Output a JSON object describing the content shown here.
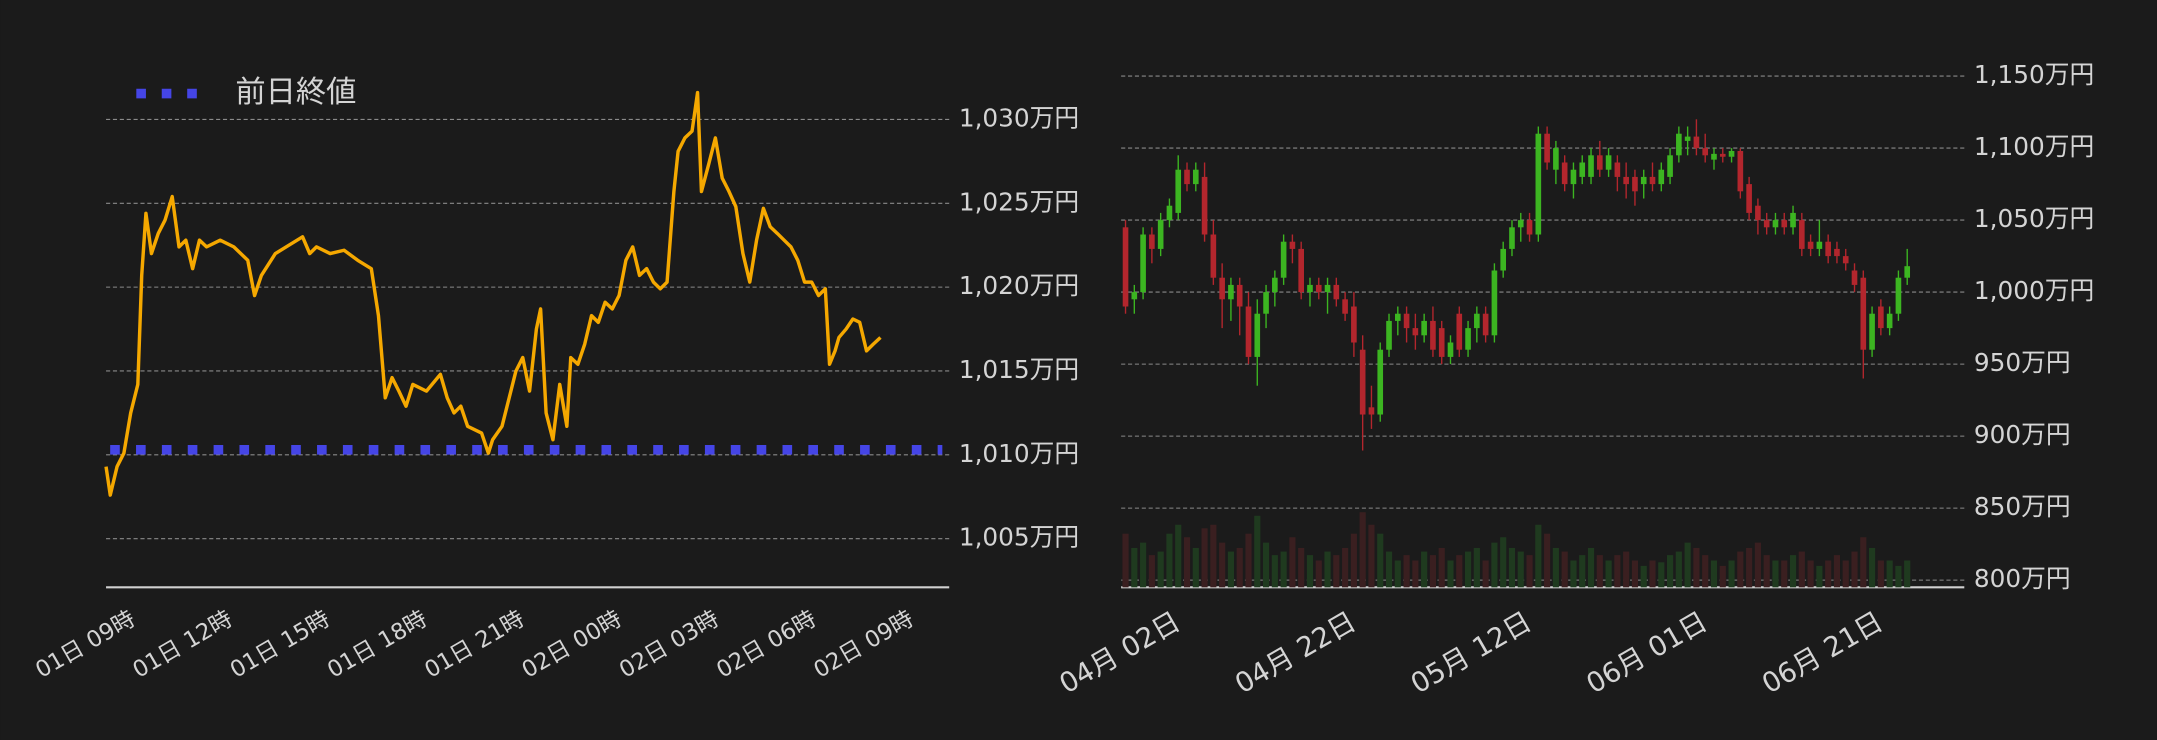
{
  "chart_data": [
    {
      "type": "line",
      "x": [
        0,
        0.13,
        0.34,
        0.55,
        0.76,
        0.98,
        1.1,
        1.23,
        1.4,
        1.61,
        1.82,
        2.04,
        2.25,
        2.46,
        2.67,
        2.88,
        3.1,
        3.52,
        3.94,
        4.37,
        4.58,
        4.79,
        5.22,
        5.64,
        6.06,
        6.28,
        6.49,
        6.91,
        7.34,
        7.76,
        8.18,
        8.4,
        8.61,
        8.82,
        9.03,
        9.25,
        9.46,
        9.88,
        10.31,
        10.52,
        10.73,
        10.94,
        11.15,
        11.58,
        11.79,
        11.92,
        12.21,
        12.64,
        12.85,
        13.06,
        13.27,
        13.4,
        13.57,
        13.78,
        13.99,
        14.21,
        14.33,
        14.55,
        14.76,
        14.97,
        15.18,
        15.39,
        15.61,
        15.82,
        16.03,
        16.24,
        16.45,
        16.67,
        16.88,
        17.09,
        17.3,
        17.51,
        17.64,
        17.85,
        18.07,
        18.24,
        18.36,
        18.58,
        18.79,
        19,
        19.21,
        19.42,
        19.64,
        19.85,
        20.06,
        20.27,
        20.48,
        20.7,
        20.91,
        21.12,
        21.33,
        21.54,
        21.76,
        21.97,
        22.18,
        22.31,
        22.48,
        22.6,
        22.82,
        23.03,
        23.24,
        23.45,
        23.66,
        23.88
      ],
      "series": [
        {
          "color": "#f5a800",
          "values": [
            1009.3,
            1007.6,
            1009.3,
            1010.1,
            1012.5,
            1014.2,
            1020.7,
            1024.4,
            1022,
            1023.2,
            1024,
            1025.4,
            1022.4,
            1022.8,
            1021.1,
            1022.8,
            1022.4,
            1022.8,
            1022.4,
            1021.6,
            1019.5,
            1020.7,
            1022,
            1022.5,
            1023,
            1022,
            1022.4,
            1022,
            1022.2,
            1021.6,
            1021.1,
            1018.3,
            1013.4,
            1014.6,
            1013.8,
            1012.9,
            1014.2,
            1013.8,
            1014.8,
            1013.4,
            1012.5,
            1012.9,
            1011.7,
            1011.3,
            1010.1,
            1010.9,
            1011.7,
            1015,
            1015.8,
            1013.8,
            1017.5,
            1018.7,
            1012.5,
            1010.9,
            1014.2,
            1011.7,
            1015.8,
            1015.4,
            1016.6,
            1018.3,
            1017.9,
            1019.1,
            1018.7,
            1019.5,
            1021.6,
            1022.4,
            1020.7,
            1021.1,
            1020.3,
            1019.9,
            1020.3,
            1025.7,
            1028.1,
            1028.9,
            1029.3,
            1031.6,
            1025.7,
            1027.3,
            1028.9,
            1026.5,
            1025.7,
            1024.8,
            1022,
            1020.3,
            1022.8,
            1024.7,
            1023.6,
            1023.2,
            1022.8,
            1022.4,
            1021.6,
            1020.3,
            1020.3,
            1019.5,
            1019.9,
            1015.4,
            1016.2,
            1017,
            1017.5,
            1018.1,
            1017.9,
            1016.2,
            1016.6,
            1017
          ]
        }
      ],
      "reference_line": {
        "name": "前日終値",
        "value": 1010.3,
        "color": "#4545e6"
      },
      "xlim": [
        0,
        26
      ],
      "xticks": [
        {
          "value": 0,
          "label": "01日 09時"
        },
        {
          "value": 3,
          "label": "01日 12時"
        },
        {
          "value": 6,
          "label": "01日 15時"
        },
        {
          "value": 9,
          "label": "01日 18時"
        },
        {
          "value": 12,
          "label": "01日 21時"
        },
        {
          "value": 15,
          "label": "02日 00時"
        },
        {
          "value": 18,
          "label": "02日 03時"
        },
        {
          "value": 21,
          "label": "02日 06時"
        },
        {
          "value": 24,
          "label": "02日 09時"
        }
      ],
      "ylim": [
        1002.1,
        1032.2
      ],
      "yticks": [
        {
          "value": 1005,
          "label": "1,005万円"
        },
        {
          "value": 1010,
          "label": "1,010万円"
        },
        {
          "value": 1015,
          "label": "1,015万円"
        },
        {
          "value": 1020,
          "label": "1,020万円"
        },
        {
          "value": 1025,
          "label": "1,025万円"
        },
        {
          "value": 1030,
          "label": "1,030万円"
        }
      ],
      "grid": true
    },
    {
      "type": "candlestick",
      "x": [
        "04月 01日",
        "04月 02日",
        "04月 03日",
        "04月 04日",
        "04月 05日",
        "04月 06日",
        "04月 07日",
        "04月 08日",
        "04月 09日",
        "04月 10日",
        "04月 11日",
        "04月 12日",
        "04月 13日",
        "04月 14日",
        "04月 15日",
        "04月 16日",
        "04月 17日",
        "04月 18日",
        "04月 19日",
        "04月 20日",
        "04月 21日",
        "04月 22日",
        "04月 23日",
        "04月 24日",
        "04月 25日",
        "04月 26日",
        "04月 27日",
        "04月 28日",
        "04月 29日",
        "04月 30日",
        "05月 01日",
        "05月 02日",
        "05月 03日",
        "05月 04日",
        "05月 05日",
        "05月 06日",
        "05月 07日",
        "05月 08日",
        "05月 09日",
        "05月 10日",
        "05月 11日",
        "05月 12日",
        "05月 13日",
        "05月 14日",
        "05月 15日",
        "05月 16日",
        "05月 17日",
        "05月 18日",
        "05月 19日",
        "05月 20日",
        "05月 21日",
        "05月 22日",
        "05月 23日",
        "05月 24日",
        "05月 25日",
        "05月 26日",
        "05月 27日",
        "05月 28日",
        "05月 29日",
        "05月 30日",
        "05月 31日",
        "06月 01日",
        "06月 02日",
        "06月 03日",
        "06月 04日",
        "06月 05日",
        "06月 06日",
        "06月 07日",
        "06月 08日",
        "06月 09日",
        "06月 10日",
        "06月 11日",
        "06月 12日",
        "06月 13日",
        "06月 14日",
        "06月 15日",
        "06月 16日",
        "06月 17日",
        "06月 18日",
        "06月 19日",
        "06月 20日",
        "06月 21日",
        "06月 22日",
        "06月 23日",
        "06月 24日",
        "06月 25日",
        "06月 26日",
        "06月 27日",
        "06月 28日",
        "06月 29日"
      ],
      "open": [
        1045,
        995,
        1000,
        1040,
        1030,
        1050,
        1055,
        1085,
        1075,
        1080,
        1040,
        1010,
        995,
        1005,
        990,
        955,
        985,
        1000,
        1010,
        1035,
        1030,
        1000,
        1005,
        1000,
        1005,
        995,
        990,
        960,
        920,
        915,
        960,
        980,
        985,
        975,
        970,
        980,
        975,
        955,
        985,
        960,
        975,
        985,
        970,
        1015,
        1030,
        1045,
        1050,
        1040,
        1110,
        1085,
        1090,
        1075,
        1080,
        1080,
        1095,
        1085,
        1090,
        1080,
        1080,
        1075,
        1080,
        1075,
        1080,
        1095,
        1105,
        1108,
        1100,
        1092,
        1096,
        1094,
        1098,
        1075,
        1060,
        1050,
        1045,
        1050,
        1045,
        1050,
        1035,
        1030,
        1035,
        1030,
        1025,
        1015,
        1010,
        960,
        990,
        975,
        985,
        1010
      ],
      "high": [
        1050,
        1005,
        1045,
        1045,
        1055,
        1065,
        1095,
        1090,
        1090,
        1090,
        1050,
        1020,
        1010,
        1010,
        1000,
        995,
        1005,
        1015,
        1040,
        1040,
        1035,
        1010,
        1010,
        1010,
        1010,
        1000,
        1000,
        970,
        935,
        965,
        985,
        990,
        990,
        985,
        985,
        990,
        980,
        970,
        990,
        980,
        990,
        990,
        1020,
        1035,
        1050,
        1055,
        1055,
        1115,
        1115,
        1105,
        1095,
        1090,
        1095,
        1100,
        1105,
        1100,
        1095,
        1090,
        1085,
        1085,
        1090,
        1090,
        1100,
        1115,
        1115,
        1120,
        1110,
        1100,
        1100,
        1100,
        1100,
        1080,
        1065,
        1055,
        1055,
        1055,
        1060,
        1055,
        1040,
        1050,
        1040,
        1035,
        1030,
        1020,
        1015,
        990,
        995,
        990,
        1015,
        1030
      ],
      "low": [
        985,
        985,
        995,
        1020,
        1025,
        1045,
        1050,
        1070,
        1070,
        1035,
        1005,
        975,
        980,
        970,
        950,
        935,
        975,
        990,
        1005,
        1020,
        995,
        990,
        995,
        985,
        990,
        980,
        955,
        890,
        905,
        910,
        955,
        970,
        965,
        960,
        965,
        955,
        950,
        950,
        955,
        955,
        965,
        965,
        965,
        1010,
        1025,
        1035,
        1035,
        1035,
        1085,
        1075,
        1070,
        1065,
        1075,
        1075,
        1080,
        1080,
        1070,
        1065,
        1060,
        1065,
        1070,
        1070,
        1075,
        1090,
        1095,
        1095,
        1090,
        1085,
        1090,
        1090,
        1065,
        1050,
        1040,
        1040,
        1040,
        1040,
        1040,
        1025,
        1025,
        1025,
        1020,
        1020,
        1015,
        1000,
        940,
        955,
        970,
        970,
        980,
        1005
      ],
      "close": [
        990,
        1000,
        1040,
        1030,
        1050,
        1060,
        1085,
        1075,
        1085,
        1040,
        1010,
        995,
        1005,
        990,
        955,
        985,
        1000,
        1010,
        1035,
        1030,
        1000,
        1005,
        1000,
        1005,
        995,
        985,
        965,
        915,
        915,
        960,
        980,
        985,
        975,
        970,
        980,
        960,
        955,
        965,
        960,
        975,
        985,
        970,
        1015,
        1030,
        1045,
        1050,
        1040,
        1110,
        1090,
        1100,
        1075,
        1085,
        1090,
        1095,
        1085,
        1095,
        1080,
        1075,
        1070,
        1080,
        1075,
        1085,
        1095,
        1110,
        1108,
        1100,
        1095,
        1096,
        1094,
        1098,
        1070,
        1055,
        1050,
        1045,
        1050,
        1045,
        1055,
        1030,
        1030,
        1035,
        1025,
        1025,
        1020,
        1005,
        960,
        985,
        975,
        985,
        1010,
        1018
      ],
      "volume": [
        30,
        22,
        25,
        18,
        20,
        30,
        35,
        28,
        22,
        33,
        35,
        25,
        20,
        22,
        30,
        40,
        25,
        18,
        20,
        28,
        22,
        18,
        15,
        20,
        18,
        22,
        30,
        42,
        35,
        30,
        20,
        15,
        18,
        15,
        20,
        18,
        22,
        15,
        18,
        20,
        22,
        15,
        25,
        28,
        22,
        20,
        18,
        35,
        30,
        22,
        20,
        15,
        18,
        22,
        18,
        15,
        18,
        20,
        15,
        12,
        15,
        14,
        18,
        20,
        25,
        22,
        18,
        15,
        12,
        15,
        20,
        22,
        25,
        18,
        15,
        15,
        18,
        20,
        15,
        12,
        15,
        18,
        15,
        20,
        28,
        22,
        15,
        15,
        12,
        15
      ],
      "volume_ylim": [
        0,
        100
      ],
      "up_color": "#3cb521",
      "down_color": "#b3262d",
      "volume_up_color": "#1f3a1f",
      "volume_down_color": "#3a1f20",
      "xticks": [
        "04月 02日",
        "04月 22日",
        "05月 12日",
        "06月 01日",
        "06月 21日"
      ],
      "ylim": [
        795,
        1157
      ],
      "yticks": [
        {
          "value": 800,
          "label": "800万円"
        },
        {
          "value": 850,
          "label": "850万円"
        },
        {
          "value": 900,
          "label": "900万円"
        },
        {
          "value": 950,
          "label": "950万円"
        },
        {
          "value": 1000,
          "label": "1,000万円"
        },
        {
          "value": 1050,
          "label": "1,050万円"
        },
        {
          "value": 1100,
          "label": "1,100万円"
        },
        {
          "value": 1150,
          "label": "1,150万円"
        }
      ],
      "grid": true
    }
  ]
}
